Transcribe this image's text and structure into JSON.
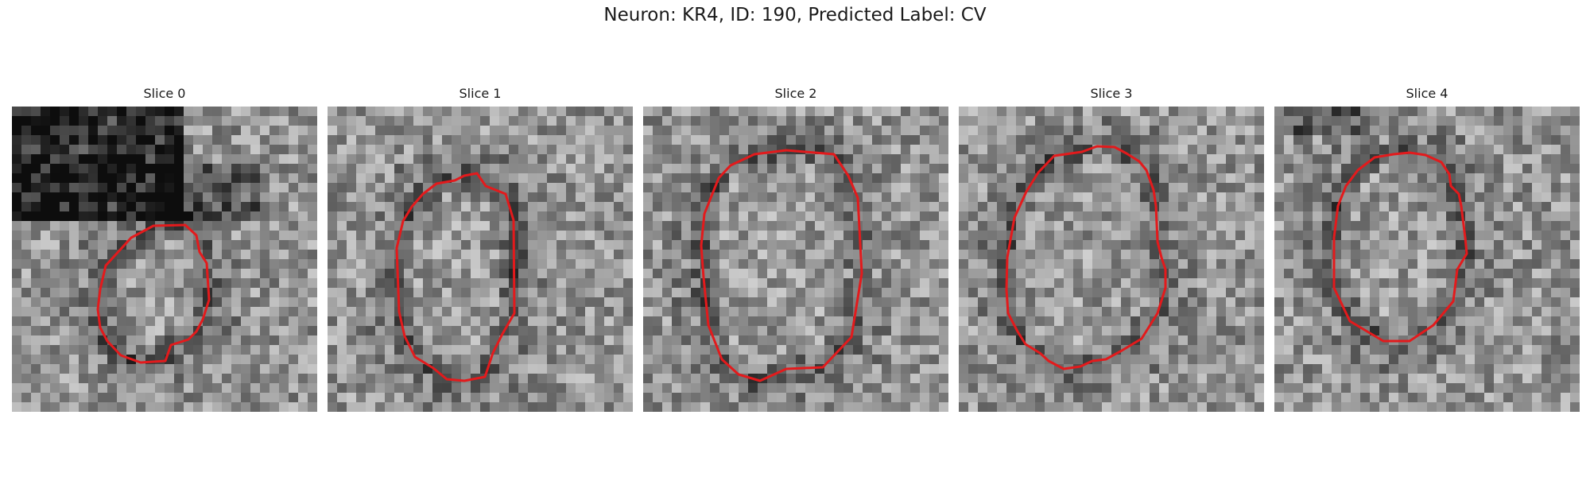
{
  "figure": {
    "title": "Neuron: KR4, ID: 190, Predicted Label: CV"
  },
  "panels": [
    {
      "title": "Slice 0",
      "image_description": "grayscale EM patch with red contour outlining a small vesicle"
    },
    {
      "title": "Slice 1",
      "image_description": "grayscale EM patch with red contour outlining vesicle"
    },
    {
      "title": "Slice 2",
      "image_description": "grayscale EM patch with red contour outlining large vesicle"
    },
    {
      "title": "Slice 3",
      "image_description": "grayscale EM patch with red contour outlining vesicle"
    },
    {
      "title": "Slice 4",
      "image_description": "grayscale EM patch with red contour outlining vesicle"
    }
  ],
  "colors": {
    "contour": "#e31a1c",
    "background": "#ffffff",
    "text": "#1a1a1a"
  }
}
